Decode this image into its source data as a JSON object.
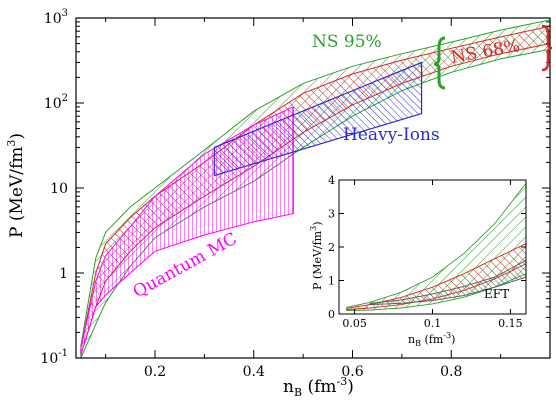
{
  "chart_data": [
    {
      "type": "area",
      "xlabel": "n",
      "xlabel_sub": "B",
      "xlabel_unit_open": " (fm",
      "xlabel_unit_exp": "-3",
      "xlabel_unit_close": ")",
      "ylabel": "P (MeV/fm",
      "ylabel_exp": "3",
      "ylabel_close": ")",
      "xlim": [
        0.04,
        1.0
      ],
      "ylim": [
        0.1,
        1000
      ],
      "yscale": "log",
      "x_ticks": [
        {
          "value": 0.2,
          "label": "0.2"
        },
        {
          "value": 0.4,
          "label": "0.4"
        },
        {
          "value": 0.6,
          "label": "0.6"
        },
        {
          "value": 0.8,
          "label": "0.8"
        }
      ],
      "y_ticks": [
        {
          "value": 0.1,
          "base": "10",
          "exp": "-1"
        },
        {
          "value": 1,
          "base": "1",
          "exp": ""
        },
        {
          "value": 10,
          "base": "10",
          "exp": ""
        },
        {
          "value": 100,
          "base": "10",
          "exp": "2"
        },
        {
          "value": 1000,
          "base": "10",
          "exp": "3"
        }
      ],
      "grid": false,
      "legend": "annotations",
      "series": [
        {
          "name": "NS 95%",
          "color": "#2ca02c",
          "x": [
            0.05,
            0.08,
            0.1,
            0.15,
            0.2,
            0.3,
            0.4,
            0.5,
            0.6,
            0.7,
            0.8,
            0.9,
            1.0
          ],
          "lower": [
            0.1,
            0.25,
            0.45,
            1.2,
            2.6,
            6.0,
            12,
            30,
            70,
            140,
            230,
            330,
            430
          ],
          "upper": [
            0.14,
            1.5,
            3.0,
            6.0,
            10,
            28,
            80,
            170,
            270,
            380,
            520,
            720,
            950
          ]
        },
        {
          "name": "NS 68%",
          "color": "#d62728",
          "x": [
            0.05,
            0.08,
            0.1,
            0.15,
            0.2,
            0.3,
            0.4,
            0.5,
            0.6,
            0.7,
            0.8,
            0.9,
            1.0
          ],
          "lower": [
            0.11,
            0.4,
            0.8,
            1.8,
            3.4,
            8.0,
            18,
            45,
            95,
            170,
            270,
            380,
            500
          ],
          "upper": [
            0.13,
            1.0,
            2.2,
            4.5,
            8.0,
            20,
            55,
            130,
            220,
            320,
            440,
            600,
            800
          ]
        },
        {
          "name": "Quantum MC",
          "color": "#ff00ff",
          "x": [
            0.05,
            0.08,
            0.1,
            0.15,
            0.2,
            0.3,
            0.4,
            0.48
          ],
          "lower": [
            0.11,
            0.4,
            0.55,
            1.0,
            1.8,
            2.8,
            4.0,
            5.0
          ],
          "upper": [
            0.13,
            0.8,
            1.6,
            3.5,
            8.0,
            25,
            55,
            90
          ]
        },
        {
          "name": "Heavy-Ions",
          "color": "#2b2bd6",
          "x": [
            0.32,
            0.74
          ],
          "lower": [
            14,
            75
          ],
          "upper": [
            30,
            300
          ]
        }
      ]
    },
    {
      "type": "area",
      "inset": true,
      "xlabel": "n",
      "xlabel_sub": "B",
      "xlabel_unit_open": " (fm",
      "xlabel_unit_exp": "-3",
      "xlabel_unit_close": ")",
      "ylabel": "P (MeV/fm",
      "ylabel_exp": "3",
      "ylabel_close": ")",
      "xlim": [
        0.04,
        0.16
      ],
      "ylim": [
        0,
        4
      ],
      "x_ticks": [
        {
          "value": 0.05,
          "label": "0.05"
        },
        {
          "value": 0.1,
          "label": "0.1"
        },
        {
          "value": 0.15,
          "label": "0.15"
        }
      ],
      "y_ticks": [
        {
          "value": 0,
          "label": "0"
        },
        {
          "value": 1,
          "label": "1"
        },
        {
          "value": 2,
          "label": "2"
        },
        {
          "value": 3,
          "label": "3"
        },
        {
          "value": 4,
          "label": "4"
        }
      ],
      "series": [
        {
          "name": "NS 95%",
          "color": "#2ca02c",
          "x": [
            0.045,
            0.06,
            0.08,
            0.1,
            0.12,
            0.14,
            0.16
          ],
          "lower": [
            0.1,
            0.12,
            0.18,
            0.3,
            0.5,
            0.8,
            1.2
          ],
          "upper": [
            0.2,
            0.35,
            0.65,
            1.1,
            1.8,
            2.7,
            3.9
          ]
        },
        {
          "name": "NS 68%",
          "color": "#d62728",
          "x": [
            0.045,
            0.06,
            0.08,
            0.1,
            0.12,
            0.14,
            0.16
          ],
          "lower": [
            0.13,
            0.18,
            0.28,
            0.45,
            0.7,
            1.05,
            1.5
          ],
          "upper": [
            0.17,
            0.28,
            0.5,
            0.8,
            1.2,
            1.65,
            2.1
          ]
        },
        {
          "name": "EFT",
          "color": "#555555",
          "x": [
            0.06,
            0.08,
            0.1,
            0.12,
            0.14,
            0.16
          ],
          "lower": [
            0.28,
            0.32,
            0.4,
            0.55,
            0.8,
            1.1
          ],
          "upper": [
            0.32,
            0.42,
            0.6,
            0.82,
            1.1,
            1.6
          ]
        }
      ]
    }
  ],
  "annotations": {
    "ns95": "NS 95%",
    "ns68": "NS 68%",
    "heavy_ions": "Heavy-Ions",
    "quantum_mc": "Quantum MC",
    "eft": "EFT"
  }
}
